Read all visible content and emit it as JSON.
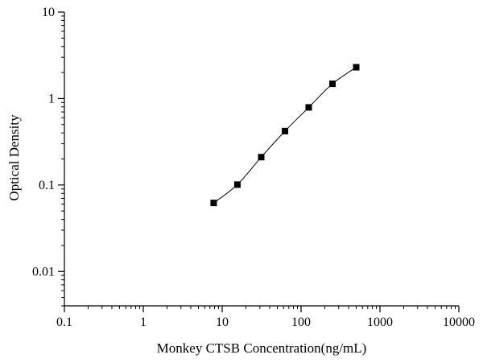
{
  "chart_data": {
    "type": "scatter",
    "title": "",
    "xlabel": "Monkey CTSB Concentration(ng/mL)",
    "ylabel": "Optical Density",
    "x_scale": "log",
    "y_scale": "log",
    "xlim": [
      0.1,
      10000
    ],
    "ylim": [
      0.004,
      10
    ],
    "x_ticks": [
      0.1,
      1,
      10,
      100,
      1000,
      10000
    ],
    "x_tick_labels": [
      "0.1",
      "1",
      "10",
      "100",
      "1000",
      "10000"
    ],
    "y_ticks": [
      0.01,
      0.1,
      1,
      10
    ],
    "y_tick_labels": [
      "0.01",
      "0.1",
      "1",
      "10"
    ],
    "grid": false,
    "series": [
      {
        "marker": "square",
        "line": "smooth",
        "color": "#000000",
        "x": [
          7.8,
          15.6,
          31.25,
          62.5,
          125,
          250,
          500
        ],
        "y": [
          0.062,
          0.101,
          0.21,
          0.42,
          0.79,
          1.48,
          2.3
        ]
      }
    ]
  }
}
